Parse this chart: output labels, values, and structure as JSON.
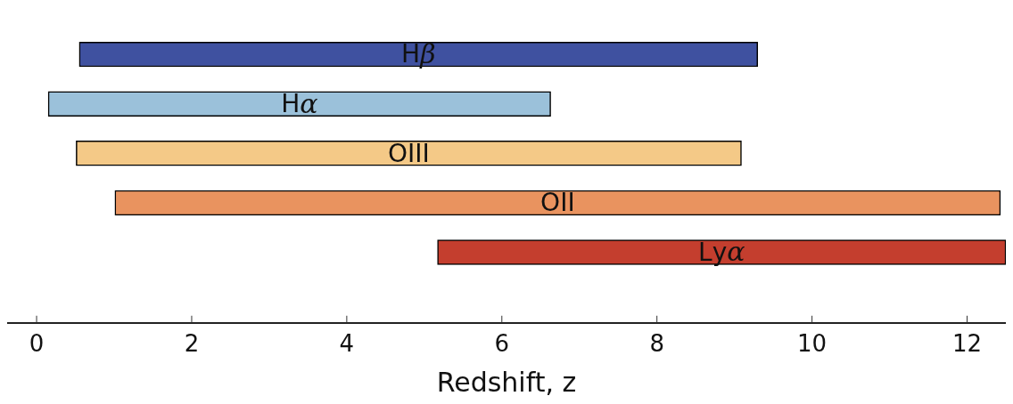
{
  "chart_data": {
    "type": "bar",
    "orientation": "horizontal",
    "xlabel": "Redshift, z",
    "categories": [
      "Hβ",
      "Hα",
      "OIII",
      "OII",
      "Lyα"
    ],
    "base": [
      0.55,
      0.15,
      0.51,
      1.01,
      5.17
    ],
    "values": [
      8.75,
      6.48,
      8.58,
      11.42,
      7.33
    ],
    "colors": [
      "#3f51a0",
      "#9bc1da",
      "#f4c987",
      "#e9935f",
      "#c43e2e"
    ],
    "xlim": [
      -0.38,
      12.5
    ],
    "xticks": [
      0,
      2,
      4,
      6,
      8,
      10,
      12
    ],
    "grid": false,
    "legend": false
  }
}
